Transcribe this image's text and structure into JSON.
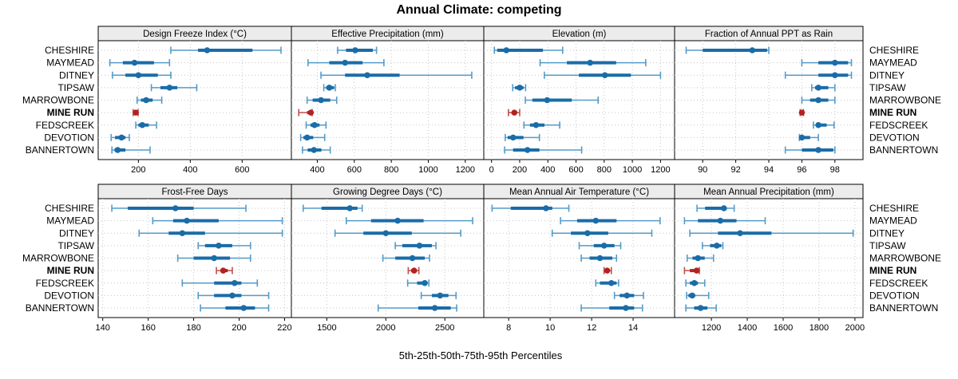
{
  "title": "Annual Climate: competing",
  "footer": "5th-25th-50th-75th-95th Percentiles",
  "sites": [
    "CHESHIRE",
    "MAYMEAD",
    "DITNEY",
    "TIPSAW",
    "MARROWBONE",
    "MINE RUN",
    "FEDSCREEK",
    "DEVOTION",
    "BANNERTOWN"
  ],
  "highlight_site": "MINE RUN",
  "colors": {
    "primary": "#1a6ca8",
    "primary_light": "#559bc9",
    "highlight": "#b22222",
    "highlight_light": "#c0504a",
    "strip_bg": "#ececec",
    "grid": "#c6c6c6",
    "border": "#000000"
  },
  "chart_data": [
    {
      "type": "dotplot-intervals",
      "title": "Design Freeze Index (°C)",
      "row": 0,
      "col": 0,
      "xlim": [
        45,
        790
      ],
      "ticks": [
        200,
        400,
        600
      ],
      "tick_labels": [
        "200",
        "400",
        "600"
      ],
      "percentile_order": [
        "p5",
        "p25",
        "p50",
        "p75",
        "p95"
      ],
      "values": [
        [
          325,
          430,
          465,
          640,
          750
        ],
        [
          90,
          140,
          185,
          260,
          320
        ],
        [
          100,
          150,
          200,
          275,
          325
        ],
        [
          250,
          285,
          320,
          350,
          425
        ],
        [
          195,
          210,
          230,
          255,
          290
        ],
        [
          180,
          186,
          190,
          194,
          199
        ],
        [
          190,
          200,
          215,
          240,
          270
        ],
        [
          95,
          110,
          135,
          150,
          165
        ],
        [
          98,
          108,
          120,
          150,
          245
        ]
      ]
    },
    {
      "type": "dotplot-intervals",
      "title": "Effective Precipitation (mm)",
      "row": 0,
      "col": 1,
      "xlim": [
        260,
        1300
      ],
      "ticks": [
        400,
        600,
        800,
        1000,
        1200
      ],
      "tick_labels": [
        "400",
        "600",
        "800",
        "1000",
        "1200"
      ],
      "percentile_order": [
        "p5",
        "p25",
        "p50",
        "p75",
        "p95"
      ],
      "values": [
        [
          510,
          555,
          605,
          700,
          720
        ],
        [
          350,
          465,
          550,
          645,
          760
        ],
        [
          420,
          550,
          670,
          845,
          1235
        ],
        [
          435,
          448,
          465,
          490,
          497
        ],
        [
          345,
          375,
          420,
          470,
          505
        ],
        [
          300,
          345,
          365,
          368,
          372
        ],
        [
          340,
          363,
          385,
          412,
          447
        ],
        [
          310,
          325,
          345,
          378,
          440
        ],
        [
          320,
          348,
          382,
          422,
          470
        ]
      ]
    },
    {
      "type": "dotplot-intervals",
      "title": "Elevation (m)",
      "row": 0,
      "col": 2,
      "xlim": [
        -55,
        1300
      ],
      "ticks": [
        0,
        200,
        400,
        600,
        800,
        1000,
        1200
      ],
      "tick_labels": [
        "0",
        "200",
        "400",
        "600",
        "800",
        "1000",
        "1200"
      ],
      "percentile_order": [
        "p5",
        "p25",
        "p50",
        "p75",
        "p95"
      ],
      "values": [
        [
          20,
          40,
          105,
          365,
          505
        ],
        [
          345,
          535,
          700,
          885,
          1095
        ],
        [
          375,
          620,
          805,
          990,
          1200
        ],
        [
          150,
          167,
          200,
          227,
          242
        ],
        [
          240,
          290,
          395,
          570,
          757
        ],
        [
          120,
          145,
          162,
          180,
          200
        ],
        [
          230,
          273,
          316,
          376,
          484
        ],
        [
          97,
          115,
          153,
          227,
          340
        ],
        [
          93,
          153,
          255,
          340,
          640
        ]
      ]
    },
    {
      "type": "dotplot-intervals",
      "title": "Fraction of Annual PPT as Rain",
      "row": 0,
      "col": 3,
      "xlim": [
        88.3,
        99.7
      ],
      "ticks": [
        90,
        92,
        94,
        96,
        98
      ],
      "tick_labels": [
        "90",
        "92",
        "94",
        "96",
        "98"
      ],
      "percentile_order": [
        "p5",
        "p25",
        "p50",
        "p75",
        "p95"
      ],
      "values": [
        [
          89.0,
          90.0,
          93.0,
          93.9,
          94.0
        ],
        [
          96.0,
          97.0,
          98.0,
          98.8,
          99.0
        ],
        [
          95.0,
          97.0,
          98.0,
          98.8,
          99.0
        ],
        [
          96.6,
          96.8,
          97.0,
          97.6,
          98.0
        ],
        [
          96.0,
          96.5,
          97.0,
          97.6,
          98.0
        ],
        [
          95.9,
          95.97,
          96.0,
          96.05,
          96.1
        ],
        [
          96.7,
          96.9,
          97.0,
          97.5,
          97.95
        ],
        [
          95.85,
          95.95,
          96.0,
          96.5,
          97.0
        ],
        [
          95.0,
          96.0,
          97.0,
          97.9,
          98.0
        ]
      ]
    },
    {
      "type": "dotplot-intervals",
      "title": "Frost-Free Days",
      "row": 1,
      "col": 0,
      "xlim": [
        138,
        223
      ],
      "ticks": [
        140,
        160,
        180,
        200,
        220
      ],
      "tick_labels": [
        "140",
        "160",
        "180",
        "200",
        "220"
      ],
      "percentile_order": [
        "p5",
        "p25",
        "p50",
        "p75",
        "p95"
      ],
      "values": [
        [
          144,
          151,
          172,
          180,
          203
        ],
        [
          162,
          171,
          177,
          191,
          219
        ],
        [
          156,
          169,
          175,
          185,
          219
        ],
        [
          182,
          185,
          191,
          197,
          205
        ],
        [
          173,
          180,
          189,
          196,
          205
        ],
        [
          190,
          192,
          193,
          195,
          197
        ],
        [
          175,
          189,
          198,
          201,
          208
        ],
        [
          182,
          189,
          197,
          201,
          213
        ],
        [
          183,
          194,
          202,
          207,
          213
        ]
      ]
    },
    {
      "type": "dotplot-intervals",
      "title": "Growing Degree Days (°C)",
      "row": 1,
      "col": 1,
      "xlim": [
        1200,
        2830
      ],
      "ticks": [
        1500,
        2000,
        2500
      ],
      "tick_labels": [
        "1500",
        "2000",
        "2500"
      ],
      "percentile_order": [
        "p5",
        "p25",
        "p50",
        "p75",
        "p95"
      ],
      "values": [
        [
          1300,
          1455,
          1695,
          1760,
          1800
        ],
        [
          1665,
          1875,
          2100,
          2320,
          2735
        ],
        [
          1570,
          1810,
          2000,
          2220,
          2635
        ],
        [
          2080,
          2140,
          2285,
          2390,
          2425
        ],
        [
          1975,
          2080,
          2225,
          2330,
          2370
        ],
        [
          2190,
          2215,
          2240,
          2260,
          2280
        ],
        [
          2185,
          2265,
          2330,
          2345,
          2365
        ],
        [
          2300,
          2390,
          2460,
          2530,
          2595
        ],
        [
          1935,
          2275,
          2415,
          2550,
          2600
        ]
      ]
    },
    {
      "type": "dotplot-intervals",
      "title": "Mean Annual Air Temperature (°C)",
      "row": 1,
      "col": 2,
      "xlim": [
        6.8,
        16.0
      ],
      "ticks": [
        8,
        10,
        12,
        14
      ],
      "tick_labels": [
        "8",
        "10",
        "12",
        "14"
      ],
      "percentile_order": [
        "p5",
        "p25",
        "p50",
        "p75",
        "p95"
      ],
      "values": [
        [
          7.2,
          8.1,
          9.8,
          10.1,
          10.9
        ],
        [
          10.5,
          11.3,
          12.2,
          13.2,
          15.3
        ],
        [
          10.1,
          11.0,
          11.8,
          12.8,
          14.9
        ],
        [
          11.4,
          12.1,
          12.6,
          13.1,
          13.4
        ],
        [
          11.5,
          11.9,
          12.4,
          13.0,
          13.2
        ],
        [
          12.6,
          12.7,
          12.75,
          12.85,
          12.95
        ],
        [
          12.2,
          12.4,
          12.95,
          13.2,
          13.3
        ],
        [
          13.1,
          13.35,
          13.7,
          14.05,
          14.5
        ],
        [
          11.5,
          12.85,
          13.65,
          14.05,
          14.45
        ]
      ]
    },
    {
      "type": "dotplot-intervals",
      "title": "Mean Annual Precipitation (mm)",
      "row": 1,
      "col": 3,
      "xlim": [
        995,
        2045
      ],
      "ticks": [
        1200,
        1400,
        1600,
        1800,
        2000
      ],
      "tick_labels": [
        "1200",
        "1400",
        "1600",
        "1800",
        "2000"
      ],
      "percentile_order": [
        "p5",
        "p25",
        "p50",
        "p75",
        "p95"
      ],
      "values": [
        [
          1120,
          1165,
          1270,
          1283,
          1327
        ],
        [
          1050,
          1125,
          1250,
          1340,
          1500
        ],
        [
          1080,
          1237,
          1360,
          1535,
          1990
        ],
        [
          1150,
          1193,
          1230,
          1255,
          1264
        ],
        [
          1065,
          1095,
          1125,
          1163,
          1212
        ],
        [
          1050,
          1080,
          1118,
          1126,
          1133
        ],
        [
          1058,
          1080,
          1105,
          1125,
          1163
        ],
        [
          1062,
          1072,
          1093,
          1110,
          1185
        ],
        [
          1058,
          1104,
          1140,
          1178,
          1227
        ]
      ]
    }
  ]
}
